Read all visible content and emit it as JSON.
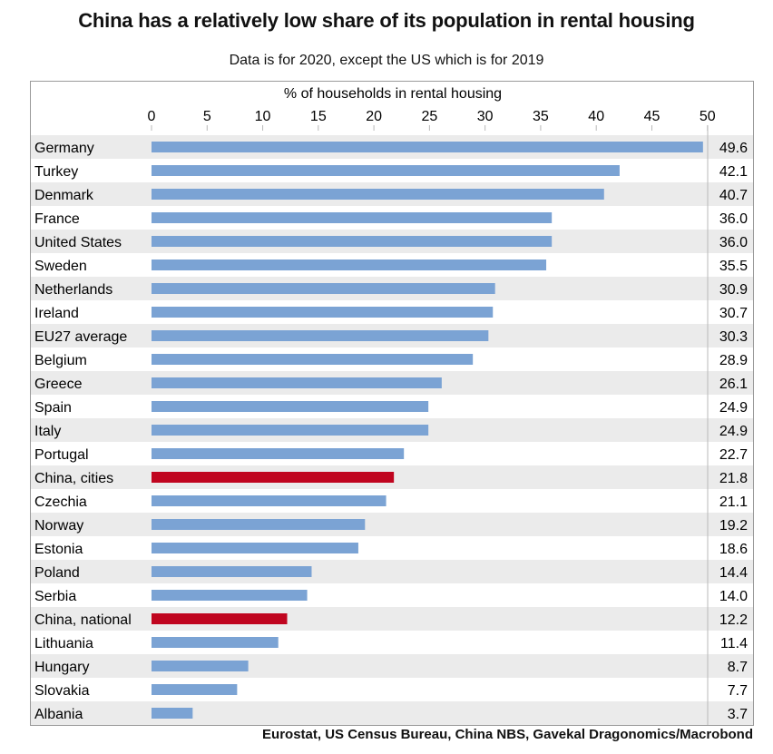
{
  "chart_data": {
    "type": "bar",
    "orientation": "horizontal",
    "title": "China has a relatively low share of its population in rental housing",
    "subtitle": "Data is for 2020, except the US which is for 2019",
    "xlabel": "% of households in rental housing",
    "xlim": [
      0,
      50
    ],
    "xticks": [
      0,
      5,
      10,
      15,
      20,
      25,
      30,
      35,
      40,
      45,
      50
    ],
    "categories": [
      "Germany",
      "Turkey",
      "Denmark",
      "France",
      "United States",
      "Sweden",
      "Netherlands",
      "Ireland",
      "EU27 average",
      "Belgium",
      "Greece",
      "Spain",
      "Italy",
      "Portugal",
      "China, cities",
      "Czechia",
      "Norway",
      "Estonia",
      "Poland",
      "Serbia",
      "China, national",
      "Lithuania",
      "Hungary",
      "Slovakia",
      "Albania"
    ],
    "values": [
      49.6,
      42.1,
      40.7,
      36.0,
      36.0,
      35.5,
      30.9,
      30.7,
      30.3,
      28.9,
      26.1,
      24.9,
      24.9,
      22.7,
      21.8,
      21.1,
      19.2,
      18.6,
      14.4,
      14.0,
      12.2,
      11.4,
      8.7,
      7.7,
      3.7
    ],
    "value_labels": [
      "49.6",
      "42.1",
      "40.7",
      "36.0",
      "36.0",
      "35.5",
      "30.9",
      "30.7",
      "30.3",
      "28.9",
      "26.1",
      "24.9",
      "24.9",
      "22.7",
      "21.8",
      "21.1",
      "19.2",
      "18.6",
      "14.4",
      "14.0",
      "12.2",
      "11.4",
      "8.7",
      "7.7",
      "3.7"
    ],
    "highlighted": [
      "China, cities",
      "China, national"
    ],
    "source": "Eurostat, US Census Bureau, China NBS, Gavekal Dragonomics/Macrobond"
  },
  "colors": {
    "bar": "#7ba3d4",
    "highlight": "#c0051f",
    "stripe": "#ebebeb",
    "grid": "#b8b8b8"
  }
}
